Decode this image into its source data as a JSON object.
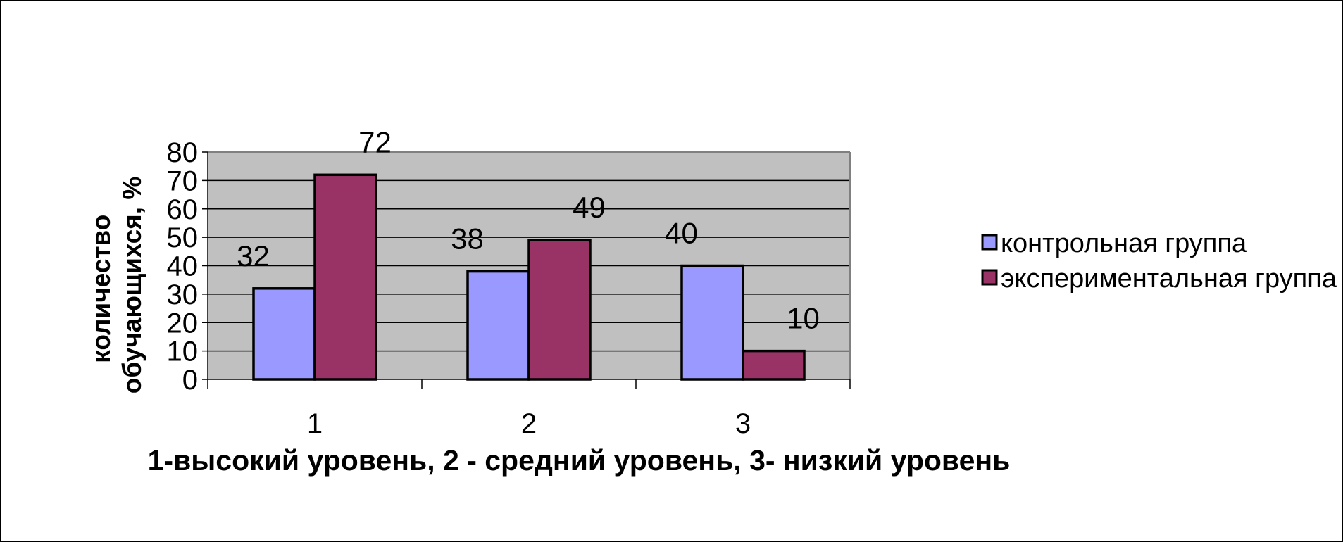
{
  "chart_data": {
    "type": "bar",
    "categories": [
      "1",
      "2",
      "3"
    ],
    "series": [
      {
        "name": "контрольная группа",
        "values": [
          32,
          38,
          40
        ],
        "color": "#9999ff"
      },
      {
        "name": "экспериментальная группа",
        "values": [
          72,
          49,
          10
        ],
        "color": "#993366"
      }
    ],
    "xlabel": "1-высокий уровень, 2 - средний уровень, 3- низкий уровень",
    "ylabel_lines": [
      "количество",
      "обучающихся, %"
    ],
    "ylim": [
      0,
      80
    ],
    "yticks": [
      0,
      10,
      20,
      30,
      40,
      50,
      60,
      70,
      80
    ],
    "grid": true,
    "legend_position": "right",
    "plot_background": "#c0c0c0"
  }
}
